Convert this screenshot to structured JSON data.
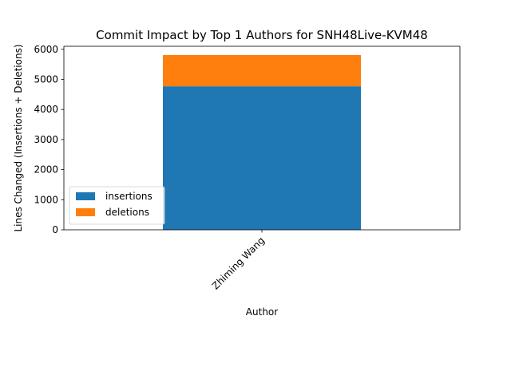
{
  "chart_data": {
    "type": "bar",
    "stacked": true,
    "title": "Commit Impact by Top 1 Authors for SNH48Live-KVM48",
    "xlabel": "Author",
    "ylabel": "Lines Changed (Insertions + Deletions)",
    "categories": [
      "Zhiming Wang"
    ],
    "series": [
      {
        "name": "insertions",
        "color": "#1f77b4",
        "values": [
          4770
        ]
      },
      {
        "name": "deletions",
        "color": "#ff7f0e",
        "values": [
          1040
        ]
      }
    ],
    "ylim": [
      0,
      6100
    ],
    "yticks": [
      0,
      1000,
      2000,
      3000,
      4000,
      5000,
      6000
    ],
    "grid": false,
    "legend_position": "lower-left"
  }
}
